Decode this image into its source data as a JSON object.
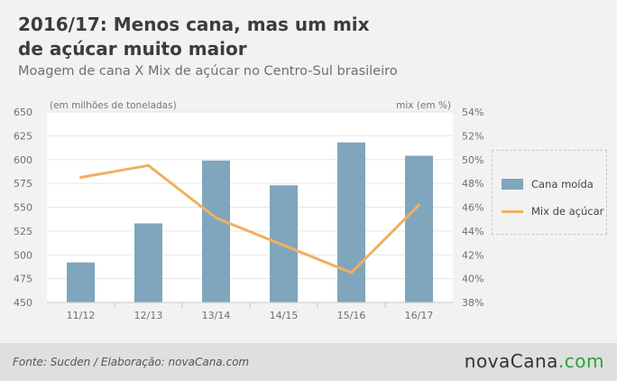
{
  "header": {
    "title": "2016/17: Menos cana, mas um mix de açúcar muito maior",
    "subtitle": "Moagem de cana X Mix de açúcar no Centro-Sul brasileiro"
  },
  "chart_data": {
    "type": "bar",
    "categories": [
      "11/12",
      "12/13",
      "13/14",
      "14/15",
      "15/16",
      "16/17"
    ],
    "series": [
      {
        "name": "Cana moída",
        "type": "bar",
        "axis": "left",
        "values": [
          492,
          533,
          599,
          573,
          618,
          604
        ],
        "color": "#7fa6bd"
      },
      {
        "name": "Mix de açúcar",
        "type": "line",
        "axis": "right",
        "values": [
          48.5,
          49.5,
          45.1,
          42.8,
          40.5,
          46.2
        ],
        "color": "#f0b060"
      }
    ],
    "y_left": {
      "label": "(em milhões de toneladas)",
      "ylim": [
        450,
        650
      ],
      "ticks": [
        "450",
        "475",
        "500",
        "525",
        "550",
        "575",
        "600",
        "625",
        "650"
      ]
    },
    "y_right": {
      "label": "mix (em %)",
      "ylim": [
        38,
        54
      ],
      "ticks": [
        "38%",
        "40%",
        "42%",
        "44%",
        "46%",
        "48%",
        "50%",
        "52%",
        "54%"
      ]
    },
    "grid": true,
    "legend_position": "right"
  },
  "footer": {
    "source": "Fonte: Sucden / Elaboração: novaCana.com",
    "logo_main": "novaCana",
    "logo_accent": ".com"
  }
}
